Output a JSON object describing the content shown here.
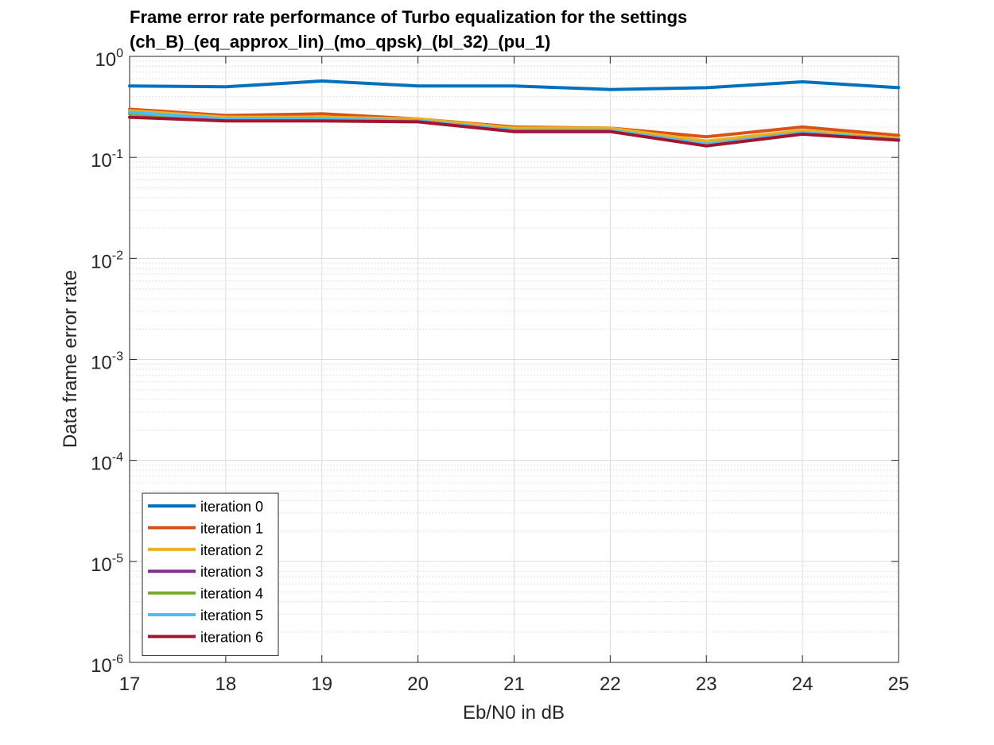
{
  "chart_data": {
    "type": "line",
    "title": [
      "Frame error rate performance of Turbo equalization for the settings",
      "(ch_B)_(eq_approx_lin)_(mo_qpsk)_(bl_32)_(pu_1)"
    ],
    "xlabel": "Eb/N0 in dB",
    "ylabel": "Data frame error rate",
    "x": [
      17,
      18,
      19,
      20,
      21,
      22,
      23,
      24,
      25
    ],
    "xlim": [
      17,
      25
    ],
    "ylim": [
      1e-06,
      1
    ],
    "yscale": "log",
    "x_ticks": [
      "17",
      "18",
      "19",
      "20",
      "21",
      "22",
      "23",
      "24",
      "25"
    ],
    "y_ticks": [
      {
        "base": "10",
        "exp": "0",
        "value": 1
      },
      {
        "base": "10",
        "exp": "-1",
        "value": 0.1
      },
      {
        "base": "10",
        "exp": "-2",
        "value": 0.01
      },
      {
        "base": "10",
        "exp": "-3",
        "value": 0.001
      },
      {
        "base": "10",
        "exp": "-4",
        "value": 0.0001
      },
      {
        "base": "10",
        "exp": "-5",
        "value": 1e-05
      },
      {
        "base": "10",
        "exp": "-6",
        "value": 1e-06
      }
    ],
    "grid": true,
    "legend_position": "bottom-left",
    "series": [
      {
        "name": "iteration 0",
        "color": "#0072BD",
        "values": [
          0.51,
          0.5,
          0.57,
          0.51,
          0.51,
          0.47,
          0.49,
          0.56,
          0.49
        ]
      },
      {
        "name": "iteration 1",
        "color": "#D95319",
        "values": [
          0.3,
          0.26,
          0.27,
          0.24,
          0.2,
          0.195,
          0.16,
          0.2,
          0.165
        ]
      },
      {
        "name": "iteration 2",
        "color": "#EDB120",
        "values": [
          0.29,
          0.25,
          0.25,
          0.24,
          0.195,
          0.195,
          0.145,
          0.185,
          0.155
        ]
      },
      {
        "name": "iteration 3",
        "color": "#7E2F8E",
        "values": [
          0.27,
          0.24,
          0.24,
          0.23,
          0.185,
          0.185,
          0.135,
          0.175,
          0.15
        ]
      },
      {
        "name": "iteration 4",
        "color": "#77AC30",
        "values": [
          0.27,
          0.24,
          0.24,
          0.23,
          0.185,
          0.185,
          0.135,
          0.175,
          0.15
        ]
      },
      {
        "name": "iteration 5",
        "color": "#4DBEEE",
        "values": [
          0.28,
          0.24,
          0.24,
          0.23,
          0.185,
          0.185,
          0.135,
          0.175,
          0.15
        ]
      },
      {
        "name": "iteration 6",
        "color": "#A2142F",
        "values": [
          0.25,
          0.23,
          0.23,
          0.225,
          0.18,
          0.18,
          0.13,
          0.17,
          0.148
        ]
      }
    ]
  }
}
